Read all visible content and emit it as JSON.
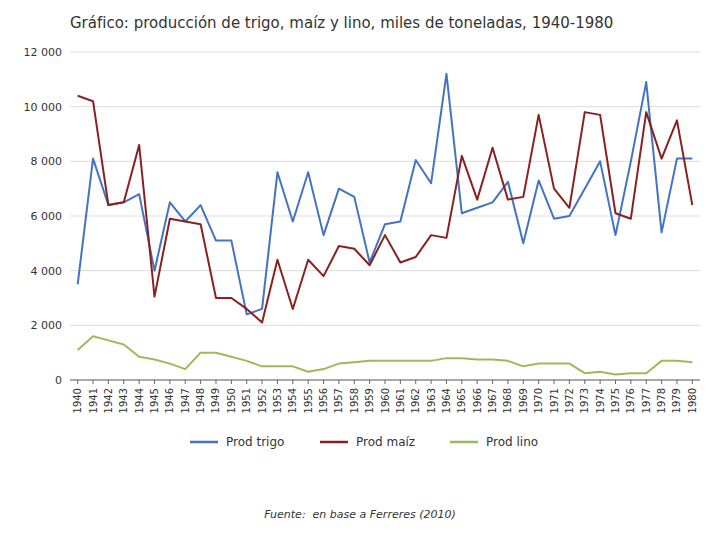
{
  "chart_data": {
    "type": "line",
    "title": "Gráfico: producción de trigo, maíz y lino, miles de toneladas, 1940-1980",
    "x": [
      1940,
      1941,
      1942,
      1943,
      1944,
      1945,
      1946,
      1947,
      1948,
      1949,
      1950,
      1951,
      1952,
      1953,
      1954,
      1955,
      1956,
      1957,
      1958,
      1959,
      1960,
      1961,
      1962,
      1963,
      1964,
      1965,
      1966,
      1967,
      1968,
      1969,
      1970,
      1971,
      1972,
      1973,
      1974,
      1975,
      1976,
      1977,
      1978,
      1979,
      1980
    ],
    "xlim": [
      1939.5,
      1980.5
    ],
    "xticks": [
      1940,
      1941,
      1942,
      1943,
      1944,
      1945,
      1946,
      1947,
      1948,
      1949,
      1950,
      1951,
      1952,
      1953,
      1954,
      1955,
      1956,
      1957,
      1958,
      1959,
      1960,
      1961,
      1962,
      1963,
      1964,
      1965,
      1966,
      1967,
      1968,
      1969,
      1970,
      1971,
      1972,
      1973,
      1974,
      1975,
      1976,
      1977,
      1978,
      1979,
      1980
    ],
    "ylim": [
      0,
      12000
    ],
    "yticks": [
      0,
      {
        "value": 2000,
        "label": "2 000"
      },
      {
        "value": 4000,
        "label": "4 000"
      },
      {
        "value": 6000,
        "label": "6 000"
      },
      {
        "value": 8000,
        "label": "8 000"
      },
      {
        "value": 10000,
        "label": "10 000"
      },
      {
        "value": 12000,
        "label": "12 000"
      }
    ],
    "grid": true,
    "legend": "bottom",
    "series": [
      {
        "name": "Prod trigo",
        "color": "#4472C4",
        "values": [
          3500,
          8100,
          6400,
          6500,
          6800,
          4000,
          6500,
          5800,
          6400,
          5100,
          5100,
          2400,
          2600,
          7600,
          5800,
          7600,
          5300,
          7000,
          6700,
          4300,
          5700,
          5800,
          8050,
          7200,
          11200,
          6100,
          6300,
          6500,
          7250,
          5000,
          7300,
          5900,
          6000,
          7000,
          8000,
          5300,
          8000,
          10900,
          5400,
          8100,
          8100
        ]
      },
      {
        "name": "Prod maíz",
        "color": "#8B2020",
        "values": [
          10400,
          10200,
          6400,
          6500,
          8600,
          3050,
          5900,
          5800,
          5700,
          3000,
          3000,
          2600,
          2100,
          4400,
          2600,
          4400,
          3800,
          4900,
          4800,
          4200,
          5300,
          4300,
          4500,
          5300,
          5200,
          8200,
          6600,
          8500,
          6600,
          6700,
          9700,
          7000,
          6300,
          9800,
          9700,
          6100,
          5900,
          9800,
          8100,
          9500,
          6400
        ]
      },
      {
        "name": "Prod lino",
        "color": "#9BBB59",
        "values": [
          1100,
          1600,
          1450,
          1300,
          850,
          750,
          600,
          400,
          1000,
          1000,
          850,
          700,
          500,
          500,
          500,
          300,
          400,
          600,
          650,
          700,
          700,
          700,
          700,
          700,
          800,
          800,
          750,
          750,
          700,
          500,
          600,
          600,
          600,
          250,
          300,
          200,
          250,
          250,
          700,
          700,
          650
        ]
      }
    ],
    "annotations": [
      "Fuente:  en base a Ferreres (2010)"
    ]
  }
}
